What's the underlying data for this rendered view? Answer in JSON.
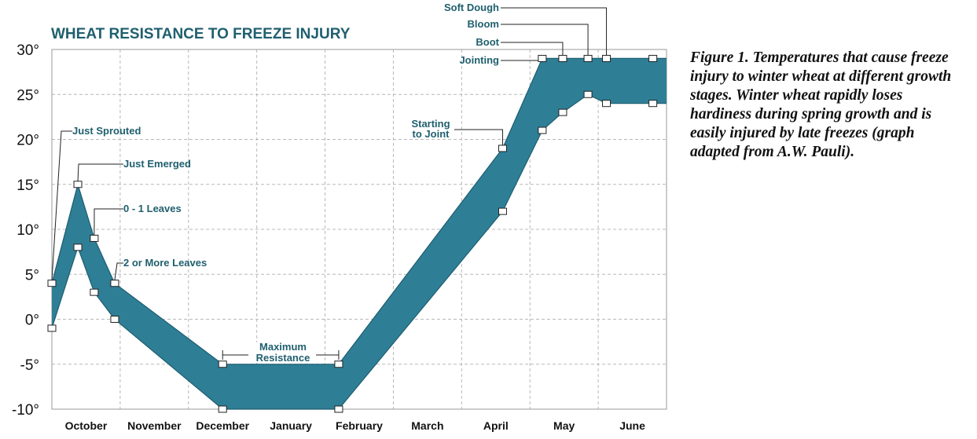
{
  "chart_data": {
    "type": "area",
    "title": "WHEAT RESISTANCE TO FREEZE INJURY",
    "xlabel": "",
    "ylabel": "",
    "months": [
      "October",
      "November",
      "December",
      "January",
      "February",
      "March",
      "April",
      "May",
      "June"
    ],
    "yticks": [
      "30°",
      "25°",
      "20°",
      "15°",
      "10°",
      "5°",
      "0°",
      "-5°",
      "-10°"
    ],
    "ylim": [
      -10,
      30
    ],
    "grid": true,
    "band_color": "#2e7f96",
    "upper": [
      {
        "x": 0.0,
        "y": 4
      },
      {
        "x": 0.38,
        "y": 15
      },
      {
        "x": 0.62,
        "y": 9
      },
      {
        "x": 0.92,
        "y": 4
      },
      {
        "x": 2.5,
        "y": -5
      },
      {
        "x": 4.2,
        "y": -5
      },
      {
        "x": 6.6,
        "y": 19
      },
      {
        "x": 7.18,
        "y": 29
      },
      {
        "x": 7.48,
        "y": 29
      },
      {
        "x": 7.85,
        "y": 29
      },
      {
        "x": 8.12,
        "y": 29
      },
      {
        "x": 8.8,
        "y": 29
      },
      {
        "x": 9.0,
        "y": 29
      }
    ],
    "lower": [
      {
        "x": 0.0,
        "y": -1
      },
      {
        "x": 0.38,
        "y": 8
      },
      {
        "x": 0.62,
        "y": 3
      },
      {
        "x": 0.92,
        "y": 0
      },
      {
        "x": 2.5,
        "y": -10
      },
      {
        "x": 4.2,
        "y": -10
      },
      {
        "x": 6.6,
        "y": 12
      },
      {
        "x": 7.18,
        "y": 21
      },
      {
        "x": 7.48,
        "y": 23
      },
      {
        "x": 7.85,
        "y": 25
      },
      {
        "x": 8.12,
        "y": 24
      },
      {
        "x": 8.8,
        "y": 24
      },
      {
        "x": 9.0,
        "y": 24
      }
    ],
    "markers": [
      {
        "x": 0.0,
        "y": 4
      },
      {
        "x": 0.0,
        "y": -1
      },
      {
        "x": 0.38,
        "y": 15
      },
      {
        "x": 0.38,
        "y": 8
      },
      {
        "x": 0.62,
        "y": 9
      },
      {
        "x": 0.62,
        "y": 3
      },
      {
        "x": 0.92,
        "y": 4
      },
      {
        "x": 0.92,
        "y": 0
      },
      {
        "x": 2.5,
        "y": -5
      },
      {
        "x": 2.5,
        "y": -10
      },
      {
        "x": 4.2,
        "y": -5
      },
      {
        "x": 4.2,
        "y": -10
      },
      {
        "x": 6.6,
        "y": 19
      },
      {
        "x": 6.6,
        "y": 12
      },
      {
        "x": 7.18,
        "y": 29
      },
      {
        "x": 7.18,
        "y": 21
      },
      {
        "x": 7.48,
        "y": 29
      },
      {
        "x": 7.48,
        "y": 23
      },
      {
        "x": 7.85,
        "y": 29
      },
      {
        "x": 7.85,
        "y": 25
      },
      {
        "x": 8.12,
        "y": 29
      },
      {
        "x": 8.12,
        "y": 24
      },
      {
        "x": 8.8,
        "y": 29
      },
      {
        "x": 8.8,
        "y": 24
      }
    ],
    "annotations": [
      {
        "text": "Just Sprouted"
      },
      {
        "text": "Just Emerged"
      },
      {
        "text": "0 - 1 Leaves"
      },
      {
        "text": "2 or More Leaves"
      },
      {
        "text": "Maximum"
      },
      {
        "text": "Resistance"
      },
      {
        "text": "Starting"
      },
      {
        "text": "to Joint"
      },
      {
        "text": "Jointing"
      },
      {
        "text": "Boot"
      },
      {
        "text": "Bloom"
      },
      {
        "text": "Soft Dough"
      }
    ]
  },
  "caption": {
    "figure_label": "Figure 1.",
    "text": " Temperatures that cause freeze injury to winter wheat at different growth stages. Winter wheat rapidly loses hardiness during spring growth and is easily injured by late freezes (graph adapted from A.W. Pauli)."
  }
}
